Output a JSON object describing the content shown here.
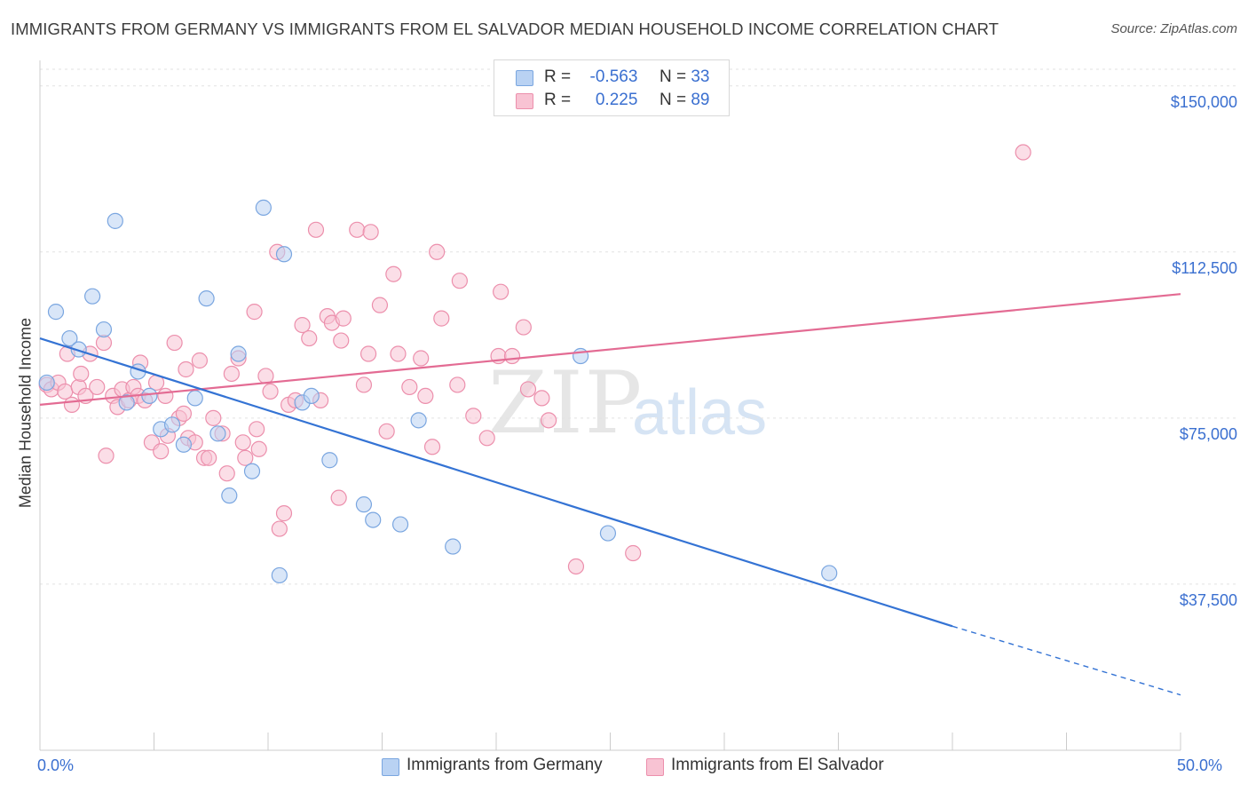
{
  "title": "IMMIGRANTS FROM GERMANY VS IMMIGRANTS FROM EL SALVADOR MEDIAN HOUSEHOLD INCOME CORRELATION CHART",
  "source": "Source: ZipAtlas.com",
  "watermark": {
    "zip": "ZIP",
    "atlas": "atlas"
  },
  "legend_top": {
    "rows": [
      {
        "r_label": "R =",
        "r_value": "-0.563",
        "n_label": "N =",
        "n_value": "33",
        "color": "#a8c6ee"
      },
      {
        "r_label": "R =",
        "r_value": " 0.225",
        "n_label": "N =",
        "n_value": "89",
        "color": "#f5b3c8"
      }
    ]
  },
  "colors": {
    "germany_fill": "#b9d2f3",
    "germany_stroke": "#7aa6e0",
    "germany_line": "#3473d4",
    "elsalvador_fill": "#f8c3d3",
    "elsalvador_stroke": "#ec8fac",
    "elsalvador_line": "#e36b93",
    "axis_text": "#3a6fd0",
    "grid": "#e2e2e2"
  },
  "chart_data": {
    "type": "scatter",
    "title": "IMMIGRANTS FROM GERMANY VS IMMIGRANTS FROM EL SALVADOR MEDIAN HOUSEHOLD INCOME CORRELATION CHART",
    "xlabel": "",
    "ylabel": "Median Household Income",
    "xlim": [
      0,
      50
    ],
    "ylim": [
      0,
      153750
    ],
    "x_tick_labels": [
      "0.0%",
      "50.0%"
    ],
    "y_ticks": [
      37500,
      75000,
      112500,
      150000
    ],
    "y_tick_labels": [
      "$37,500",
      "$75,000",
      "$112,500",
      "$150,000"
    ],
    "grid": true,
    "legend": "bottom-center",
    "series": [
      {
        "name": "Immigrants from Germany",
        "points": [
          [
            0.3,
            83000
          ],
          [
            0.7,
            99000
          ],
          [
            1.3,
            93000
          ],
          [
            1.7,
            90500
          ],
          [
            2.3,
            102500
          ],
          [
            2.8,
            95000
          ],
          [
            3.3,
            119500
          ],
          [
            3.8,
            78500
          ],
          [
            4.3,
            85500
          ],
          [
            4.8,
            80000
          ],
          [
            5.3,
            72500
          ],
          [
            5.8,
            73500
          ],
          [
            6.3,
            69000
          ],
          [
            6.8,
            79500
          ],
          [
            7.3,
            102000
          ],
          [
            7.8,
            71500
          ],
          [
            8.3,
            57500
          ],
          [
            8.7,
            89500
          ],
          [
            9.3,
            63000
          ],
          [
            9.8,
            122500
          ],
          [
            10.5,
            39500
          ],
          [
            10.7,
            112000
          ],
          [
            11.5,
            78500
          ],
          [
            11.9,
            80000
          ],
          [
            12.7,
            65500
          ],
          [
            14.2,
            55500
          ],
          [
            14.6,
            52000
          ],
          [
            15.8,
            51000
          ],
          [
            16.6,
            74500
          ],
          [
            18.1,
            46000
          ],
          [
            23.7,
            89000
          ],
          [
            24.9,
            49000
          ],
          [
            34.6,
            40000
          ]
        ]
      },
      {
        "name": "Immigrants from El Salvador",
        "points": [
          [
            0.3,
            82500
          ],
          [
            0.5,
            81500
          ],
          [
            0.8,
            83000
          ],
          [
            1.1,
            81000
          ],
          [
            1.2,
            89500
          ],
          [
            1.4,
            78000
          ],
          [
            1.7,
            82000
          ],
          [
            1.8,
            85000
          ],
          [
            2.0,
            80000
          ],
          [
            2.2,
            89500
          ],
          [
            2.5,
            82000
          ],
          [
            2.8,
            92000
          ],
          [
            2.9,
            66500
          ],
          [
            3.2,
            80000
          ],
          [
            3.4,
            77500
          ],
          [
            3.6,
            81500
          ],
          [
            3.9,
            79000
          ],
          [
            4.1,
            82000
          ],
          [
            4.3,
            80000
          ],
          [
            4.4,
            87500
          ],
          [
            4.6,
            79000
          ],
          [
            4.9,
            69500
          ],
          [
            5.1,
            83000
          ],
          [
            5.3,
            67500
          ],
          [
            5.5,
            80000
          ],
          [
            5.6,
            71000
          ],
          [
            5.9,
            92000
          ],
          [
            6.1,
            75000
          ],
          [
            6.3,
            76000
          ],
          [
            6.4,
            86000
          ],
          [
            6.5,
            70500
          ],
          [
            6.8,
            69500
          ],
          [
            7.0,
            88000
          ],
          [
            7.2,
            66000
          ],
          [
            7.4,
            66000
          ],
          [
            7.6,
            75000
          ],
          [
            8.0,
            71500
          ],
          [
            8.2,
            62500
          ],
          [
            8.4,
            85000
          ],
          [
            8.7,
            88500
          ],
          [
            8.9,
            69500
          ],
          [
            9.0,
            66000
          ],
          [
            9.4,
            99000
          ],
          [
            9.5,
            72500
          ],
          [
            9.6,
            68000
          ],
          [
            9.9,
            84500
          ],
          [
            10.1,
            81000
          ],
          [
            10.4,
            112500
          ],
          [
            10.5,
            50000
          ],
          [
            10.7,
            53500
          ],
          [
            10.9,
            78000
          ],
          [
            11.2,
            79000
          ],
          [
            11.5,
            96000
          ],
          [
            11.8,
            93000
          ],
          [
            12.1,
            117500
          ],
          [
            12.3,
            79000
          ],
          [
            12.6,
            98000
          ],
          [
            12.8,
            96500
          ],
          [
            13.1,
            57000
          ],
          [
            13.2,
            92500
          ],
          [
            13.3,
            97500
          ],
          [
            13.9,
            117500
          ],
          [
            14.2,
            82500
          ],
          [
            14.4,
            89500
          ],
          [
            14.5,
            117000
          ],
          [
            14.9,
            100500
          ],
          [
            15.2,
            72000
          ],
          [
            15.5,
            107500
          ],
          [
            15.7,
            89500
          ],
          [
            16.2,
            82000
          ],
          [
            16.7,
            88500
          ],
          [
            16.9,
            80000
          ],
          [
            17.2,
            68500
          ],
          [
            17.4,
            112500
          ],
          [
            17.6,
            97500
          ],
          [
            18.3,
            82500
          ],
          [
            18.4,
            106000
          ],
          [
            19.0,
            75500
          ],
          [
            19.6,
            70500
          ],
          [
            20.1,
            89000
          ],
          [
            20.2,
            103500
          ],
          [
            20.7,
            89000
          ],
          [
            21.2,
            95500
          ],
          [
            21.4,
            81500
          ],
          [
            22.0,
            79500
          ],
          [
            22.3,
            74500
          ],
          [
            23.5,
            41500
          ],
          [
            26.0,
            44500
          ],
          [
            43.1,
            135000
          ]
        ]
      }
    ],
    "trend_lines": [
      {
        "series": "Immigrants from Germany",
        "solid": [
          [
            0,
            93000
          ],
          [
            40,
            28000
          ]
        ],
        "dashed": [
          [
            40,
            28000
          ],
          [
            50,
            12500
          ]
        ]
      },
      {
        "series": "Immigrants from El Salvador",
        "solid": [
          [
            0,
            78000
          ],
          [
            50,
            103000
          ]
        ]
      }
    ]
  },
  "legend_bottom": [
    {
      "label": "Immigrants from Germany"
    },
    {
      "label": "Immigrants from El Salvador"
    }
  ]
}
